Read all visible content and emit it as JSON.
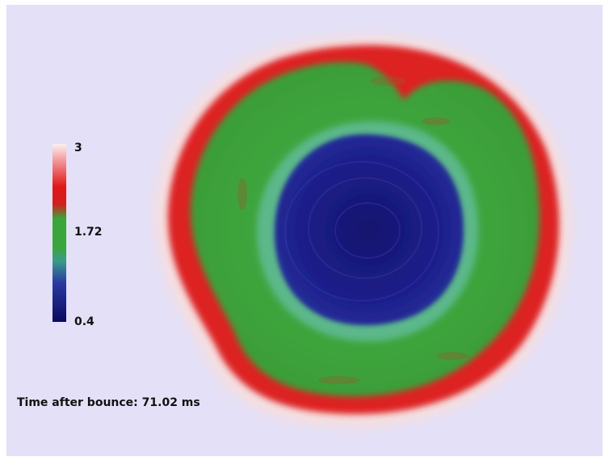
{
  "colorbar": {
    "max_label": "3",
    "mid_label": "1.72",
    "min_label": "0.4",
    "colors": [
      "#fbf0f0",
      "#e02020",
      "#e02020",
      "#3aa53a",
      "#3aa53a",
      "#3a8a7a",
      "#1a1a8a",
      "#0a0a60"
    ]
  },
  "annotation": {
    "time_text": "Time after bounce: 71.02 ms"
  },
  "colors": {
    "background": "#e4e0f7",
    "outer_red": "#e02020",
    "shell_green": "#3aa53a",
    "core_blue": "#1c1c88"
  }
}
